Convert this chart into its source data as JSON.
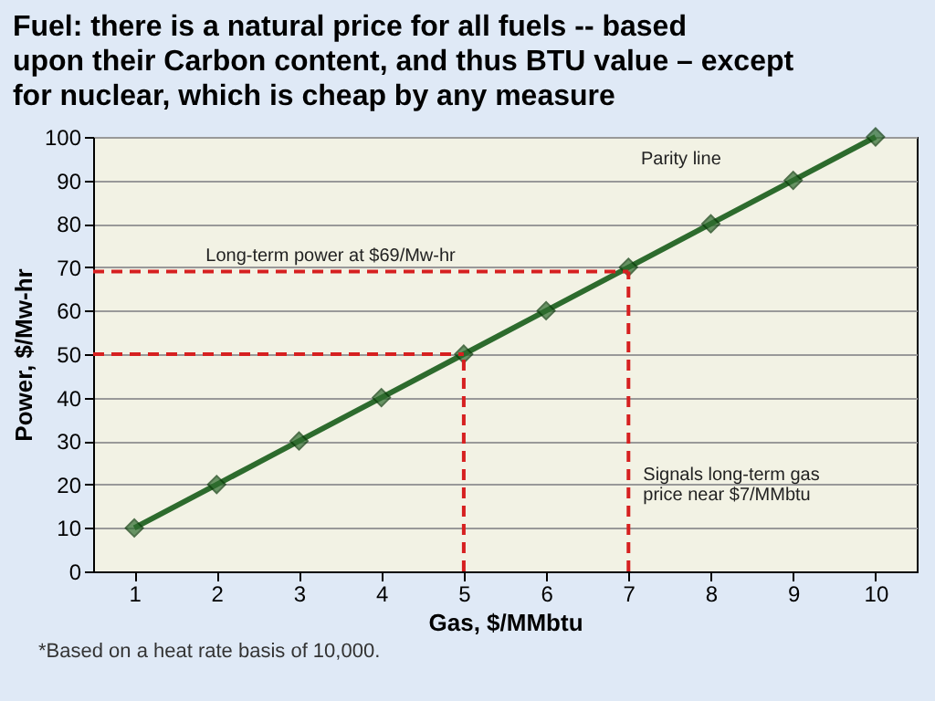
{
  "chart_data": {
    "type": "line",
    "title": "Fuel: there is a natural price for all fuels -- based upon their Carbon content, and thus BTU value – except for nuclear, which is cheap by any measure",
    "xlabel": "Gas, $/MMbtu",
    "ylabel": "Power, $/Mw-hr",
    "x": [
      1,
      2,
      3,
      4,
      5,
      6,
      7,
      8,
      9,
      10
    ],
    "series": [
      {
        "color": "#2d6b2d",
        "values": [
          10,
          20,
          30,
          40,
          50,
          60,
          70,
          80,
          90,
          100
        ]
      }
    ],
    "xlim": [
      0.5,
      10.5
    ],
    "xticks": [
      1,
      2,
      3,
      4,
      5,
      6,
      7,
      8,
      9,
      10
    ],
    "ylim": [
      0,
      100
    ],
    "yticks": [
      0,
      10,
      20,
      30,
      40,
      50,
      60,
      70,
      80,
      90,
      100
    ],
    "grid": "y",
    "marker": "diamond",
    "line_style": "solid",
    "ref_lines": [
      {
        "axis": "y",
        "value": 50,
        "color": "#d62020",
        "line_style": "dashed"
      },
      {
        "axis": "x",
        "value": 5,
        "color": "#d62020",
        "line_style": "dashed"
      },
      {
        "axis": "y",
        "value": 69,
        "color": "#d62020",
        "line_style": "dashed",
        "label": "Long-term power at $69/Mw-hr"
      },
      {
        "axis": "x",
        "value": 7,
        "color": "#d62020",
        "line_style": "dashed",
        "label": "Signals long-term gas price near $7/MMbtu"
      }
    ],
    "annotations": [
      "Parity line",
      "*Based on a heat rate basis of 10,000."
    ]
  }
}
